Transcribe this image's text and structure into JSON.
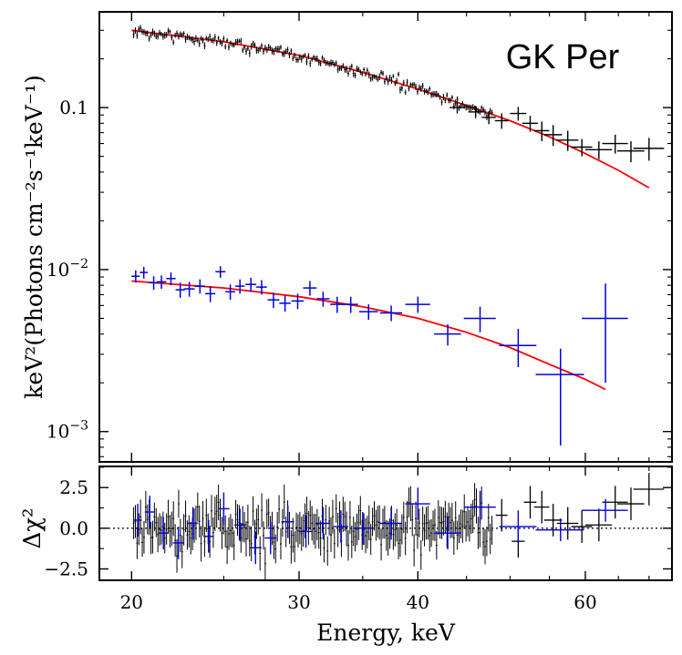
{
  "chart_data": [
    {
      "type": "scatter",
      "panel": "spectrum",
      "title": "GK Per",
      "ylabel": "keV²(Photons cm⁻²s⁻¹keV⁻¹)",
      "xlabel": "Energy, keV",
      "xscale": "log",
      "yscale": "log",
      "xlim": [
        18.5,
        74
      ],
      "ylim": [
        0.00065,
        0.39
      ],
      "xticks": [
        20,
        30,
        40,
        60
      ],
      "yticks": [
        {
          "value": 0.001,
          "base": "10",
          "exp": "−3"
        },
        {
          "value": 0.01,
          "base": "10",
          "exp": "−2"
        },
        {
          "value": 0.1,
          "label": "0.1"
        }
      ],
      "series": [
        {
          "name": "data (black)",
          "color": "#000000",
          "note": "dense low-energy points (20–48 keV) approximated by a smooth cloud",
          "points": [
            {
              "x": 44.0,
              "y": 0.1,
              "xerr": 0.8,
              "yerr": 0.008
            },
            {
              "x": 46.0,
              "y": 0.094,
              "xerr": 0.8,
              "yerr": 0.008
            },
            {
              "x": 47.5,
              "y": 0.087,
              "xerr": 0.8,
              "yerr": 0.008
            },
            {
              "x": 49.0,
              "y": 0.083,
              "xerr": 0.8,
              "yerr": 0.009
            },
            {
              "x": 51.0,
              "y": 0.092,
              "xerr": 1.0,
              "yerr": 0.009
            },
            {
              "x": 52.5,
              "y": 0.08,
              "xerr": 1.0,
              "yerr": 0.009
            },
            {
              "x": 54.0,
              "y": 0.072,
              "xerr": 1.0,
              "yerr": 0.01
            },
            {
              "x": 55.5,
              "y": 0.068,
              "xerr": 1.2,
              "yerr": 0.01
            },
            {
              "x": 57.5,
              "y": 0.063,
              "xerr": 1.5,
              "yerr": 0.009
            },
            {
              "x": 59.5,
              "y": 0.057,
              "xerr": 1.5,
              "yerr": 0.007
            },
            {
              "x": 62.0,
              "y": 0.055,
              "xerr": 2.0,
              "yerr": 0.007
            },
            {
              "x": 64.5,
              "y": 0.06,
              "xerr": 2.0,
              "yerr": 0.008
            },
            {
              "x": 67.0,
              "y": 0.054,
              "xerr": 2.2,
              "yerr": 0.008
            },
            {
              "x": 70.0,
              "y": 0.056,
              "xerr": 2.6,
              "yerr": 0.009
            }
          ]
        },
        {
          "name": "data (blue)",
          "color": "#0000dd",
          "points": [
            {
              "x": 20.2,
              "y": 0.0091,
              "xerr": 0.2,
              "yerr": 0.0008
            },
            {
              "x": 20.6,
              "y": 0.0096,
              "xerr": 0.2,
              "yerr": 0.0008
            },
            {
              "x": 21.1,
              "y": 0.0083,
              "xerr": 0.25,
              "yerr": 0.0008
            },
            {
              "x": 21.5,
              "y": 0.0084,
              "xerr": 0.25,
              "yerr": 0.0008
            },
            {
              "x": 22.0,
              "y": 0.0088,
              "xerr": 0.25,
              "yerr": 0.0008
            },
            {
              "x": 22.5,
              "y": 0.0075,
              "xerr": 0.25,
              "yerr": 0.0008
            },
            {
              "x": 23.0,
              "y": 0.0076,
              "xerr": 0.3,
              "yerr": 0.0008
            },
            {
              "x": 23.6,
              "y": 0.0079,
              "xerr": 0.3,
              "yerr": 0.0008
            },
            {
              "x": 24.2,
              "y": 0.0071,
              "xerr": 0.3,
              "yerr": 0.0008
            },
            {
              "x": 24.8,
              "y": 0.0097,
              "xerr": 0.3,
              "yerr": 0.0008
            },
            {
              "x": 25.4,
              "y": 0.0073,
              "xerr": 0.3,
              "yerr": 0.0008
            },
            {
              "x": 26.0,
              "y": 0.0079,
              "xerr": 0.3,
              "yerr": 0.0008
            },
            {
              "x": 26.7,
              "y": 0.0081,
              "xerr": 0.35,
              "yerr": 0.0008
            },
            {
              "x": 27.4,
              "y": 0.0078,
              "xerr": 0.35,
              "yerr": 0.0008
            },
            {
              "x": 28.2,
              "y": 0.0065,
              "xerr": 0.4,
              "yerr": 0.0007
            },
            {
              "x": 29.0,
              "y": 0.0062,
              "xerr": 0.4,
              "yerr": 0.0007
            },
            {
              "x": 29.9,
              "y": 0.0064,
              "xerr": 0.45,
              "yerr": 0.0007
            },
            {
              "x": 30.8,
              "y": 0.0077,
              "xerr": 0.5,
              "yerr": 0.0008
            },
            {
              "x": 31.8,
              "y": 0.0066,
              "xerr": 0.5,
              "yerr": 0.0007
            },
            {
              "x": 32.9,
              "y": 0.0061,
              "xerr": 0.55,
              "yerr": 0.0007
            },
            {
              "x": 34.0,
              "y": 0.0061,
              "xerr": 0.6,
              "yerr": 0.0007
            },
            {
              "x": 35.5,
              "y": 0.0055,
              "xerr": 0.8,
              "yerr": 0.0006
            },
            {
              "x": 37.5,
              "y": 0.0054,
              "xerr": 1.0,
              "yerr": 0.0006
            },
            {
              "x": 40.0,
              "y": 0.0061,
              "xerr": 1.2,
              "yerr": 0.0007
            },
            {
              "x": 43.0,
              "y": 0.004,
              "xerr": 1.4,
              "yerr": 0.0006
            },
            {
              "x": 46.5,
              "y": 0.005,
              "xerr": 1.8,
              "yerr": 0.0009
            },
            {
              "x": 51.0,
              "y": 0.0034,
              "xerr": 2.3,
              "yerr": 0.0009
            },
            {
              "x": 56.5,
              "y": 0.00225,
              "xerr": 3.3,
              "yerr": [
                0.00143,
                0.001
              ]
            },
            {
              "x": 63.0,
              "y": 0.005,
              "xerr": 3.5,
              "yerr": [
                0.003,
                0.0032
              ]
            }
          ]
        },
        {
          "name": "model (black spectrum)",
          "color": "#ff0000",
          "kind": "line",
          "points": [
            {
              "x": 20,
              "y": 0.3
            },
            {
              "x": 25,
              "y": 0.255
            },
            {
              "x": 30,
              "y": 0.21
            },
            {
              "x": 35,
              "y": 0.165
            },
            {
              "x": 40,
              "y": 0.13
            },
            {
              "x": 45,
              "y": 0.103
            },
            {
              "x": 50,
              "y": 0.083
            },
            {
              "x": 55,
              "y": 0.066
            },
            {
              "x": 60,
              "y": 0.052
            },
            {
              "x": 65,
              "y": 0.041
            },
            {
              "x": 70,
              "y": 0.032
            }
          ]
        },
        {
          "name": "model (blue spectrum)",
          "color": "#ff0000",
          "kind": "line",
          "points": [
            {
              "x": 20,
              "y": 0.0085
            },
            {
              "x": 25,
              "y": 0.0077
            },
            {
              "x": 30,
              "y": 0.0068
            },
            {
              "x": 35,
              "y": 0.0059
            },
            {
              "x": 40,
              "y": 0.005
            },
            {
              "x": 45,
              "y": 0.0041
            },
            {
              "x": 50,
              "y": 0.0033
            },
            {
              "x": 55,
              "y": 0.0026
            },
            {
              "x": 60,
              "y": 0.0021
            },
            {
              "x": 63,
              "y": 0.00182
            }
          ]
        }
      ]
    },
    {
      "type": "scatter",
      "panel": "residuals",
      "ylabel": "Δχ²",
      "xlabel": "Energy, keV",
      "xscale": "log",
      "yscale": "linear",
      "xlim": [
        18.5,
        74
      ],
      "ylim": [
        -3.2,
        3.8
      ],
      "xticks": [
        20,
        30,
        40,
        60
      ],
      "yticks": [
        -2.5,
        0.0,
        2.5
      ],
      "reference_line": 0,
      "series": [
        {
          "name": "residuals (black)",
          "color": "#000000",
          "note": "dense residual cloud between 20 and 48 keV scattered within about ±2.5",
          "points": [
            {
              "x": 49.0,
              "y": 0.8,
              "xerr": 0.7,
              "yerr": 1.0
            },
            {
              "x": 51.0,
              "y": -0.8,
              "xerr": 0.8,
              "yerr": 1.0
            },
            {
              "x": 52.5,
              "y": 1.6,
              "xerr": 0.8,
              "yerr": 1.0
            },
            {
              "x": 54.0,
              "y": 1.3,
              "xerr": 1.0,
              "yerr": 1.0
            },
            {
              "x": 55.5,
              "y": 0.5,
              "xerr": 1.2,
              "yerr": 1.0
            },
            {
              "x": 57.5,
              "y": 0.3,
              "xerr": 1.5,
              "yerr": 1.0
            },
            {
              "x": 59.5,
              "y": 0.1,
              "xerr": 1.5,
              "yerr": 1.0
            },
            {
              "x": 62.0,
              "y": 0.2,
              "xerr": 2.0,
              "yerr": 1.0
            },
            {
              "x": 64.5,
              "y": 1.6,
              "xerr": 2.0,
              "yerr": 1.0
            },
            {
              "x": 67.0,
              "y": 1.5,
              "xerr": 2.2,
              "yerr": 1.0
            },
            {
              "x": 70.0,
              "y": 2.4,
              "xerr": 2.6,
              "yerr": 1.0
            }
          ]
        },
        {
          "name": "residuals (blue)",
          "color": "#0000dd",
          "points": [
            {
              "x": 20.3,
              "y": 0.5,
              "xerr": 0.2,
              "yerr": 1.0
            },
            {
              "x": 20.9,
              "y": 1.0,
              "xerr": 0.25,
              "yerr": 1.0
            },
            {
              "x": 21.6,
              "y": -0.3,
              "xerr": 0.25,
              "yerr": 1.0
            },
            {
              "x": 22.4,
              "y": -0.9,
              "xerr": 0.3,
              "yerr": 1.0
            },
            {
              "x": 23.2,
              "y": 0.3,
              "xerr": 0.3,
              "yerr": 1.0
            },
            {
              "x": 24.1,
              "y": -0.5,
              "xerr": 0.3,
              "yerr": 1.0
            },
            {
              "x": 25.0,
              "y": 1.2,
              "xerr": 0.35,
              "yerr": 1.0
            },
            {
              "x": 26.0,
              "y": 0.2,
              "xerr": 0.35,
              "yerr": 1.0
            },
            {
              "x": 27.0,
              "y": -1.2,
              "xerr": 0.4,
              "yerr": 1.0
            },
            {
              "x": 28.0,
              "y": -0.6,
              "xerr": 0.4,
              "yerr": 1.0
            },
            {
              "x": 29.2,
              "y": 0.4,
              "xerr": 0.45,
              "yerr": 1.0
            },
            {
              "x": 30.5,
              "y": -0.2,
              "xerr": 0.5,
              "yerr": 1.0
            },
            {
              "x": 31.8,
              "y": 0.3,
              "xerr": 0.55,
              "yerr": 1.0
            },
            {
              "x": 33.2,
              "y": 0.1,
              "xerr": 0.6,
              "yerr": 1.0
            },
            {
              "x": 35.0,
              "y": 0.0,
              "xerr": 0.8,
              "yerr": 1.0
            },
            {
              "x": 37.5,
              "y": 0.3,
              "xerr": 1.0,
              "yerr": 1.0
            },
            {
              "x": 40.0,
              "y": 1.5,
              "xerr": 1.2,
              "yerr": 1.0
            },
            {
              "x": 43.0,
              "y": -0.3,
              "xerr": 1.4,
              "yerr": 1.0
            },
            {
              "x": 46.5,
              "y": 1.3,
              "xerr": 1.8,
              "yerr": 1.0
            },
            {
              "x": 51.0,
              "y": 0.1,
              "xerr": 2.3,
              "yerr": 1.0
            },
            {
              "x": 56.5,
              "y": -0.1,
              "xerr": 3.3,
              "yerr": 0.7
            },
            {
              "x": 63.0,
              "y": 1.1,
              "xerr": 3.5,
              "yerr": 0.7
            }
          ]
        }
      ]
    }
  ]
}
